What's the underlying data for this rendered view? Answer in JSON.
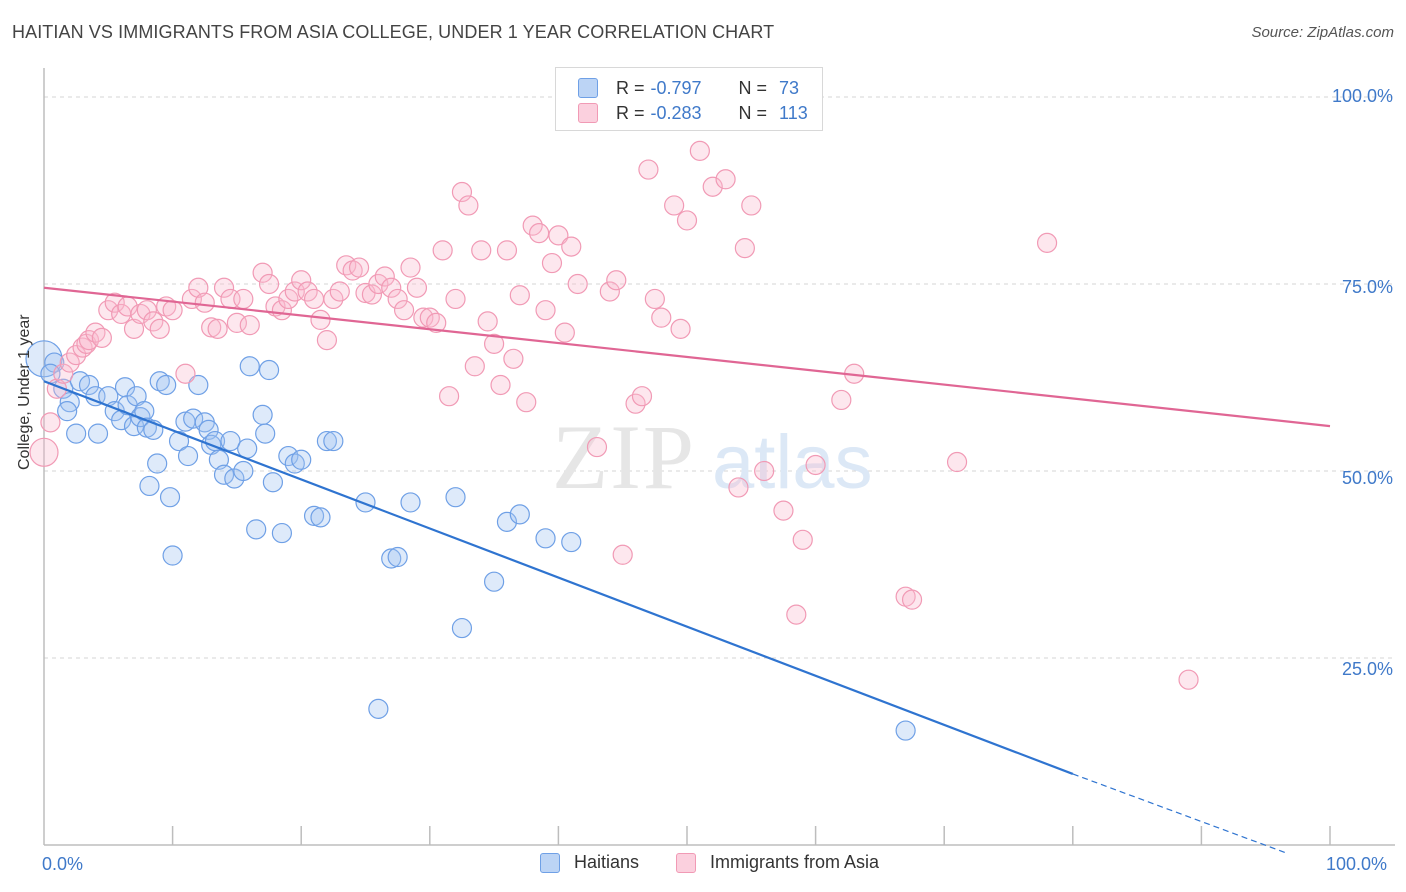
{
  "title": "HAITIAN VS IMMIGRANTS FROM ASIA COLLEGE, UNDER 1 YEAR CORRELATION CHART",
  "source": "Source: ZipAtlas.com",
  "watermark": {
    "zip": "ZIP",
    "atlas": "atlas"
  },
  "legend": {
    "rows": [
      {
        "r_label": "R =",
        "r_value": "-0.797",
        "n_label": "N =",
        "n_value": "73",
        "color": "#6fa0e6"
      },
      {
        "r_label": "R =",
        "r_value": "-0.283",
        "n_label": "N =",
        "n_value": "113",
        "color": "#f19ab5"
      }
    ]
  },
  "chart_data": {
    "type": "scatter",
    "title": "HAITIAN VS IMMIGRANTS FROM ASIA COLLEGE, UNDER 1 YEAR CORRELATION CHART",
    "xlabel": "",
    "ylabel": "College, Under 1 year",
    "xlim": [
      0,
      100
    ],
    "ylim": [
      0,
      100
    ],
    "x_tick_labels": [
      "0.0%",
      "100.0%"
    ],
    "y_tick_labels": [
      "100.0%",
      "75.0%",
      "50.0%",
      "25.0%"
    ],
    "y_ticks": [
      100,
      75,
      50,
      25
    ],
    "grid": true,
    "legend_position": "top-center",
    "series": [
      {
        "name": "Haitians",
        "color": "#6fa0e6",
        "line_color": "#2f74d0",
        "r": -0.797,
        "n": 73,
        "trend": {
          "x0": 0,
          "y0": 62.0,
          "x1": 80,
          "y1": 9.5,
          "dashed_to_x": 96.5,
          "dashed_to_y": -1.0
        },
        "points": [
          [
            0,
            65
          ],
          [
            0.8,
            64.5
          ],
          [
            0.5,
            63
          ],
          [
            1.5,
            61
          ],
          [
            2,
            59.2
          ],
          [
            1.8,
            58
          ],
          [
            2.5,
            55
          ],
          [
            2.8,
            62
          ],
          [
            3.5,
            61.5
          ],
          [
            4,
            60
          ],
          [
            4.2,
            55
          ],
          [
            5,
            60
          ],
          [
            5.5,
            58
          ],
          [
            6,
            56.8
          ],
          [
            6.3,
            61.2
          ],
          [
            6.5,
            58.8
          ],
          [
            7,
            56
          ],
          [
            7.5,
            57.2
          ],
          [
            7.2,
            60
          ],
          [
            7.8,
            58
          ],
          [
            8,
            55.8
          ],
          [
            8.5,
            55.5
          ],
          [
            8.2,
            48
          ],
          [
            8.8,
            51
          ],
          [
            9,
            62
          ],
          [
            9.5,
            61.5
          ],
          [
            9.8,
            46.5
          ],
          [
            10,
            38.7
          ],
          [
            10.5,
            54
          ],
          [
            11,
            56.6
          ],
          [
            11.2,
            52
          ],
          [
            11.6,
            57
          ],
          [
            12,
            61.5
          ],
          [
            12.5,
            56.5
          ],
          [
            12.8,
            55.5
          ],
          [
            13,
            53.5
          ],
          [
            13.3,
            54
          ],
          [
            13.6,
            51.5
          ],
          [
            14,
            49.5
          ],
          [
            14.5,
            54
          ],
          [
            14.8,
            49
          ],
          [
            15.5,
            50
          ],
          [
            15.8,
            53
          ],
          [
            16,
            64
          ],
          [
            16.5,
            42.2
          ],
          [
            17,
            57.5
          ],
          [
            17.2,
            55
          ],
          [
            17.5,
            63.5
          ],
          [
            17.8,
            48.5
          ],
          [
            18.5,
            41.7
          ],
          [
            19,
            52
          ],
          [
            19.5,
            51
          ],
          [
            20,
            51.5
          ],
          [
            21,
            44
          ],
          [
            21.5,
            43.8
          ],
          [
            22,
            54
          ],
          [
            22.5,
            54
          ],
          [
            25,
            45.8
          ],
          [
            27,
            38.3
          ],
          [
            27.5,
            38.5
          ],
          [
            28.5,
            45.8
          ],
          [
            32,
            46.5
          ],
          [
            32.5,
            29
          ],
          [
            35,
            35.2
          ],
          [
            36,
            43.2
          ],
          [
            37,
            44.2
          ],
          [
            39,
            41
          ],
          [
            41,
            40.5
          ],
          [
            26,
            18.2
          ],
          [
            67,
            15.3
          ]
        ]
      },
      {
        "name": "Immigrants from Asia",
        "color": "#f19ab5",
        "line_color": "#e06694",
        "r": -0.283,
        "n": 113,
        "trend": {
          "x0": 0,
          "y0": 74.5,
          "x1": 100,
          "y1": 56.0
        },
        "points": [
          [
            0,
            52.5
          ],
          [
            0.5,
            56.5
          ],
          [
            1,
            61
          ],
          [
            1.5,
            63
          ],
          [
            2,
            64.5
          ],
          [
            2.5,
            65.5
          ],
          [
            3,
            66.5
          ],
          [
            3.3,
            67
          ],
          [
            3.5,
            67.5
          ],
          [
            4,
            68.5
          ],
          [
            4.5,
            67.8
          ],
          [
            5,
            71.5
          ],
          [
            5.5,
            72.5
          ],
          [
            6,
            71
          ],
          [
            6.5,
            72
          ],
          [
            7,
            69
          ],
          [
            7.5,
            71
          ],
          [
            8,
            71.5
          ],
          [
            8.5,
            70
          ],
          [
            9,
            69
          ],
          [
            9.5,
            72
          ],
          [
            10,
            71.5
          ],
          [
            11,
            63
          ],
          [
            11.5,
            73
          ],
          [
            12,
            74.5
          ],
          [
            12.5,
            72.5
          ],
          [
            13,
            69.2
          ],
          [
            13.5,
            69
          ],
          [
            14,
            74.5
          ],
          [
            14.5,
            73
          ],
          [
            15,
            69.8
          ],
          [
            15.5,
            73
          ],
          [
            16,
            69.5
          ],
          [
            17,
            76.5
          ],
          [
            17.5,
            75
          ],
          [
            18,
            72
          ],
          [
            18.5,
            71.5
          ],
          [
            19,
            73
          ],
          [
            19.5,
            74
          ],
          [
            20,
            75.5
          ],
          [
            20.5,
            74
          ],
          [
            21,
            73
          ],
          [
            21.5,
            70.2
          ],
          [
            22,
            67.5
          ],
          [
            22.5,
            73
          ],
          [
            23,
            74
          ],
          [
            23.5,
            77.5
          ],
          [
            24,
            76.8
          ],
          [
            24.5,
            77.2
          ],
          [
            25,
            73.8
          ],
          [
            25.5,
            73.6
          ],
          [
            26,
            75
          ],
          [
            26.5,
            76
          ],
          [
            27,
            74.5
          ],
          [
            27.5,
            73
          ],
          [
            28,
            71.5
          ],
          [
            28.5,
            77.2
          ],
          [
            29,
            74.5
          ],
          [
            29.5,
            70.5
          ],
          [
            30,
            70.5
          ],
          [
            30.5,
            69.8
          ],
          [
            31,
            79.5
          ],
          [
            31.5,
            60
          ],
          [
            32,
            73
          ],
          [
            32.5,
            87.3
          ],
          [
            33,
            85.5
          ],
          [
            33.5,
            64
          ],
          [
            34,
            79.5
          ],
          [
            34.5,
            70
          ],
          [
            35,
            67
          ],
          [
            35.5,
            61.5
          ],
          [
            36,
            79.5
          ],
          [
            36.5,
            65
          ],
          [
            37,
            73.5
          ],
          [
            37.5,
            59.2
          ],
          [
            38,
            82.8
          ],
          [
            38.5,
            81.8
          ],
          [
            39,
            71.5
          ],
          [
            39.5,
            77.8
          ],
          [
            40,
            81.5
          ],
          [
            40.5,
            68.5
          ],
          [
            41,
            80
          ],
          [
            41.5,
            75
          ],
          [
            43,
            53.2
          ],
          [
            44,
            74
          ],
          [
            44.5,
            75.5
          ],
          [
            45,
            38.8
          ],
          [
            46,
            59
          ],
          [
            46.5,
            60
          ],
          [
            47,
            90.3
          ],
          [
            47.5,
            73
          ],
          [
            48,
            70.5
          ],
          [
            49,
            85.5
          ],
          [
            49.5,
            69
          ],
          [
            50,
            83.5
          ],
          [
            51,
            92.8
          ],
          [
            52,
            88
          ],
          [
            53,
            89
          ],
          [
            54,
            47.8
          ],
          [
            54.5,
            79.8
          ],
          [
            55,
            85.5
          ],
          [
            56,
            50
          ],
          [
            57.5,
            44.7
          ],
          [
            58.5,
            30.8
          ],
          [
            59,
            40.8
          ],
          [
            60,
            50.8
          ],
          [
            62,
            59.5
          ],
          [
            63,
            63
          ],
          [
            67,
            33.2
          ],
          [
            67.5,
            32.8
          ],
          [
            71,
            51.2
          ],
          [
            78,
            80.5
          ],
          [
            89,
            22.1
          ]
        ]
      }
    ]
  },
  "bottom_legend": [
    {
      "label": "Haitians",
      "color": "#6fa0e6"
    },
    {
      "label": "Immigrants from Asia",
      "color": "#f19ab5"
    }
  ]
}
